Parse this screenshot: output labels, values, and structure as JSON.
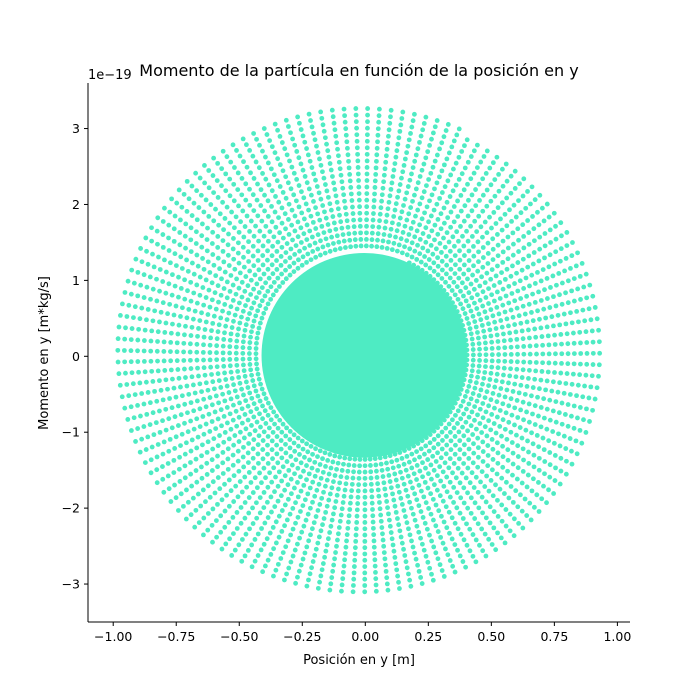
{
  "chart_data": {
    "type": "scatter",
    "title": "Momento de la partícula en función de la posición en y",
    "xlabel": "Posición en y [m]",
    "ylabel": "Momento en y [m*kg/s]",
    "y_offset_label": "1e−19",
    "xlim": [
      -1.1,
      1.05
    ],
    "ylim": [
      -3.5,
      3.6
    ],
    "x_ticks": [
      -1.0,
      -0.75,
      -0.5,
      -0.25,
      0.0,
      0.25,
      0.5,
      0.75,
      1.0
    ],
    "x_tick_labels": [
      "−1.00",
      "−0.75",
      "−0.50",
      "−0.25",
      "0.00",
      "0.25",
      "0.50",
      "0.75",
      "1.00"
    ],
    "y_ticks": [
      -3,
      -2,
      -1,
      0,
      1,
      2,
      3
    ],
    "y_tick_labels": [
      "−3",
      "−2",
      "−1",
      "0",
      "1",
      "2",
      "3"
    ],
    "y_scale_factor": 1e-19,
    "series": [
      {
        "marker": "circle",
        "color": "#4eebc3",
        "shape": "spiral",
        "start_point": [
          0.38,
          3.05
        ],
        "outermost_extent": {
          "x": [
            -0.99,
            0.95
          ],
          "y": [
            -3.15,
            3.27
          ]
        },
        "turns": 22,
        "points_per_turn": 130
      }
    ],
    "grid": false,
    "spines": [
      "left",
      "bottom"
    ]
  }
}
